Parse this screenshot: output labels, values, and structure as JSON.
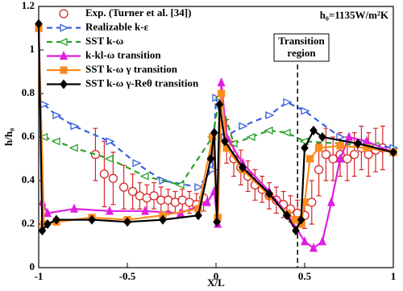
{
  "chart_data": {
    "type": "line",
    "x_label": "X/L",
    "y_label": "h/h₀",
    "xlim": [
      -1,
      1
    ],
    "ylim": [
      0,
      1.2
    ],
    "xticks": [
      -1,
      -0.5,
      0,
      0.5,
      1
    ],
    "yticks": [
      0,
      0.2,
      0.4,
      0.6,
      0.8,
      1,
      1.2
    ],
    "vline": 0.46,
    "annotations": [
      "h₀=1135W/m²K",
      "Transition",
      "region"
    ],
    "series": [
      {
        "name": "Exp. (Turner et al. [34])",
        "color": "#d62728",
        "marker": "circle",
        "line": "none",
        "x": [
          -0.68,
          -0.63,
          -0.58,
          -0.52,
          -0.47,
          -0.43,
          -0.39,
          -0.35,
          -0.31,
          -0.27,
          -0.23,
          -0.19,
          -0.15,
          -0.11,
          -0.07,
          0.06,
          0.1,
          0.14,
          0.18,
          0.22,
          0.26,
          0.3,
          0.34,
          0.38,
          0.42,
          0.46,
          0.5,
          0.54,
          0.58,
          0.62,
          0.66,
          0.7,
          0.74,
          0.78,
          0.82,
          0.86,
          0.9,
          0.94
        ],
        "values": [
          0.52,
          0.43,
          0.41,
          0.37,
          0.35,
          0.33,
          0.32,
          0.33,
          0.31,
          0.31,
          0.3,
          0.31,
          0.3,
          0.29,
          0.32,
          0.58,
          0.5,
          0.46,
          0.42,
          0.38,
          0.36,
          0.33,
          0.31,
          0.29,
          0.27,
          0.25,
          0.24,
          0.3,
          0.45,
          0.52,
          0.5,
          0.52,
          0.5,
          0.52,
          0.55,
          0.52,
          0.54,
          0.55
        ],
        "errors": [
          0.12,
          0.15,
          0.12,
          0.1,
          0.08,
          0.06,
          0.06,
          0.06,
          0.06,
          0.05,
          0.05,
          0.05,
          0.05,
          0.05,
          0.06,
          0.1,
          0.08,
          0.08,
          0.07,
          0.07,
          0.06,
          0.06,
          0.06,
          0.06,
          0.06,
          0.06,
          0.06,
          0.1,
          0.12,
          0.12,
          0.1,
          0.1,
          0.1,
          0.1,
          0.1,
          0.1,
          0.1,
          0.1
        ]
      },
      {
        "name": "Realizable k-ε",
        "color": "#3a5fe0",
        "marker": "tri-right",
        "line": "dashed",
        "x": [
          -0.97,
          -0.9,
          -0.8,
          -0.6,
          -0.45,
          -0.3,
          -0.1,
          -0.02,
          0,
          0.05,
          0.15,
          0.3,
          0.4,
          0.5,
          0.7,
          0.85,
          1
        ],
        "values": [
          0.75,
          0.7,
          0.65,
          0.58,
          0.48,
          0.4,
          0.37,
          0.45,
          0.78,
          0.6,
          0.65,
          0.7,
          0.76,
          0.72,
          0.6,
          0.57,
          0.55
        ]
      },
      {
        "name": "SST k-ω",
        "color": "#2ca02c",
        "marker": "tri-left",
        "line": "dashed",
        "x": [
          -0.97,
          -0.9,
          -0.8,
          -0.6,
          -0.4,
          -0.2,
          -0.02,
          0.02,
          0.1,
          0.2,
          0.3,
          0.4,
          0.5,
          0.7,
          0.9,
          1
        ],
        "values": [
          0.6,
          0.58,
          0.55,
          0.5,
          0.42,
          0.38,
          0.6,
          0.78,
          0.57,
          0.6,
          0.63,
          0.62,
          0.58,
          0.57,
          0.56,
          0.53
        ]
      },
      {
        "name": "k-kl-ω transition",
        "color": "#e01ee0",
        "marker": "tri-up",
        "line": "solid",
        "x": [
          -1,
          -0.98,
          -0.95,
          -0.8,
          -0.6,
          -0.4,
          -0.2,
          -0.05,
          -0.01,
          0.01,
          0.03,
          0.06,
          0.15,
          0.3,
          0.4,
          0.5,
          0.55,
          0.6,
          0.65,
          0.7,
          0.75,
          0.85,
          1
        ],
        "values": [
          1.1,
          0.3,
          0.25,
          0.27,
          0.26,
          0.26,
          0.25,
          0.3,
          0.35,
          0.2,
          0.85,
          0.6,
          0.48,
          0.35,
          0.25,
          0.12,
          0.09,
          0.12,
          0.3,
          0.5,
          0.6,
          0.58,
          0.53
        ]
      },
      {
        "name": "SST k-ω γ transition",
        "color": "#ff8c1a",
        "marker": "square",
        "line": "solid",
        "x": [
          -1,
          -0.97,
          -0.9,
          -0.7,
          -0.5,
          -0.3,
          -0.1,
          -0.02,
          0.01,
          0.03,
          0.06,
          0.15,
          0.3,
          0.4,
          0.45,
          0.48,
          0.5,
          0.53,
          0.58,
          0.7,
          0.85,
          1
        ],
        "values": [
          1.1,
          0.2,
          0.21,
          0.23,
          0.22,
          0.24,
          0.27,
          0.6,
          0.23,
          0.8,
          0.55,
          0.45,
          0.33,
          0.25,
          0.22,
          0.2,
          0.3,
          0.5,
          0.55,
          0.56,
          0.55,
          0.53
        ]
      },
      {
        "name": "SST k-ω γ-Reθ transition",
        "color": "#000000",
        "marker": "diamond",
        "line": "solid",
        "x": [
          -1,
          -0.98,
          -0.95,
          -0.9,
          -0.7,
          -0.5,
          -0.3,
          -0.1,
          -0.03,
          -0.01,
          0.005,
          0.02,
          0.05,
          0.15,
          0.3,
          0.4,
          0.45,
          0.48,
          0.5,
          0.55,
          0.6,
          0.8,
          1
        ],
        "values": [
          1.12,
          0.17,
          0.2,
          0.22,
          0.22,
          0.21,
          0.22,
          0.24,
          0.5,
          0.62,
          0.21,
          0.75,
          0.58,
          0.46,
          0.34,
          0.24,
          0.17,
          0.22,
          0.55,
          0.63,
          0.6,
          0.57,
          0.53
        ]
      }
    ]
  }
}
